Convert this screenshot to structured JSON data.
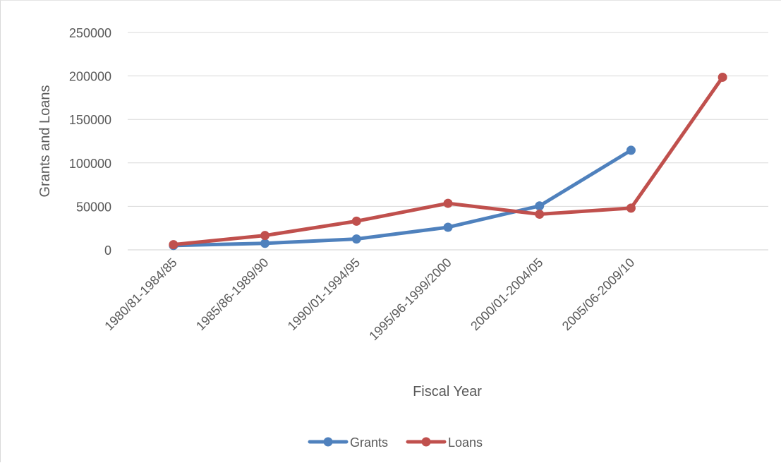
{
  "chart_data": {
    "type": "line",
    "title": "",
    "xlabel": "Fiscal Year",
    "ylabel": "Grants and Loans",
    "ylim": [
      0,
      250000
    ],
    "yticks": [
      0,
      50000,
      100000,
      150000,
      200000,
      250000
    ],
    "ytick_labels": [
      "0",
      "50000",
      "100000",
      "150000",
      "200000",
      "250000"
    ],
    "grid": "horizontal",
    "legend_position": "bottom",
    "categories": [
      "1980/81-1984/85",
      "1985/86-1989/90",
      "1990/01-1994/95",
      "1995/96-1999/2000",
      "2000/01-2004/05",
      "2005/06-2009/10",
      ""
    ],
    "series": [
      {
        "name": "Grants",
        "color": "#4f81bd",
        "values": [
          5000,
          7500,
          12500,
          26000,
          50500,
          114500,
          null
        ]
      },
      {
        "name": "Loans",
        "color": "#c0504d",
        "values": [
          6000,
          16500,
          33000,
          53500,
          41000,
          48000,
          198500
        ]
      }
    ]
  }
}
